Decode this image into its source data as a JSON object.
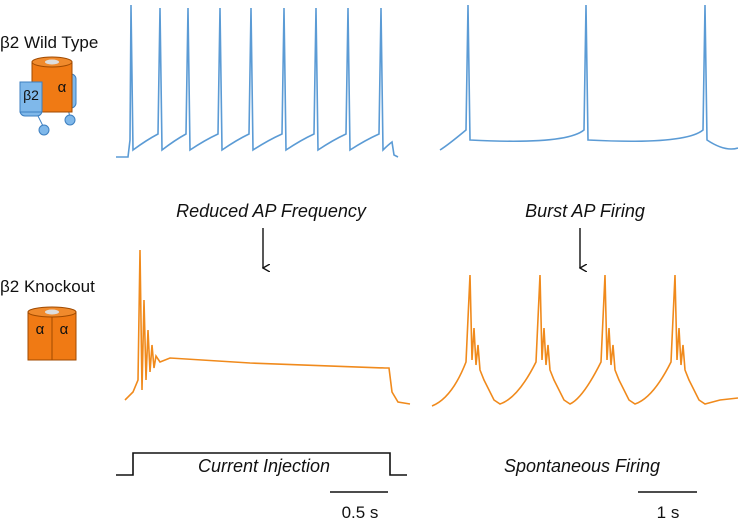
{
  "panels": [
    {
      "label": "β2 Wild Type",
      "subunits": [
        "β2",
        "α"
      ]
    },
    {
      "label": "β2 Knockout",
      "subunits": [
        "α",
        "α"
      ]
    }
  ],
  "annotations": [
    "Reduced AP Frequency",
    "Burst AP Firing"
  ],
  "protocols": [
    "Current Injection",
    "Spontaneous Firing"
  ],
  "scale_bars": [
    "0.5 s",
    "1 s"
  ]
}
